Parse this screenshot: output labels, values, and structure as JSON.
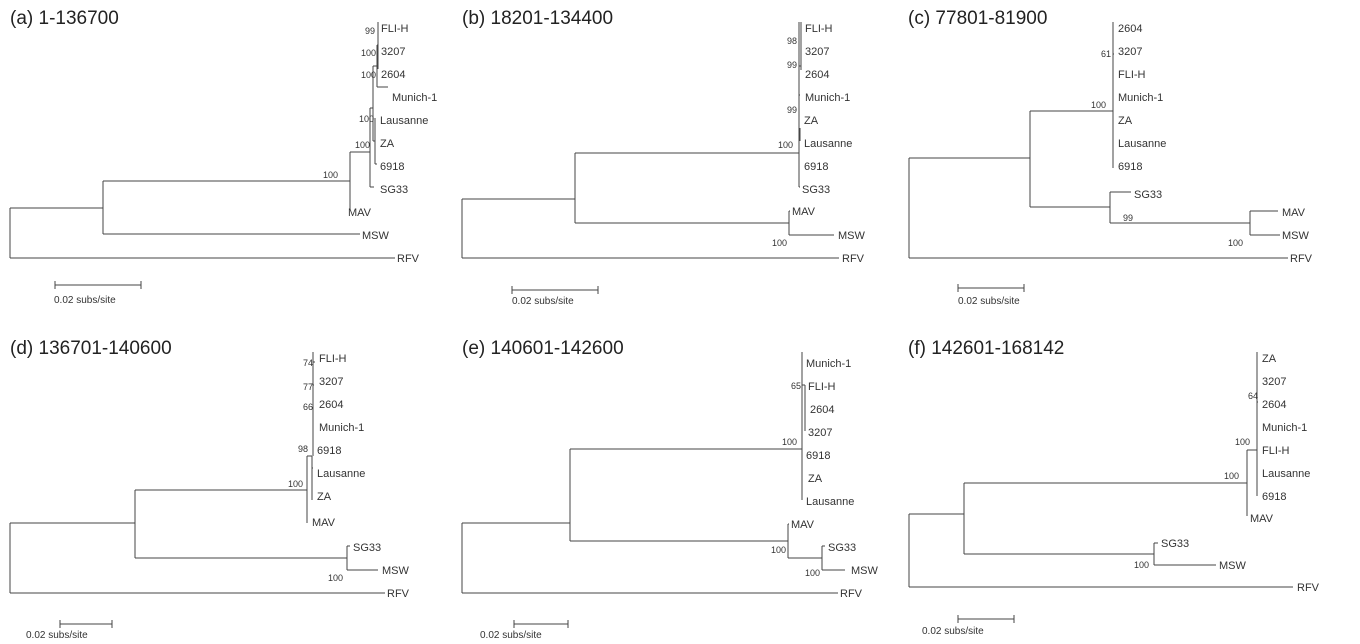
{
  "scale_label": "0.02 subs/site",
  "panels": [
    {
      "title": "(a) 1-136700",
      "tips": [
        "FLI-H",
        "3207",
        "2604",
        "Munich-1",
        "Lausanne",
        "ZA",
        "6918",
        "SG33",
        "MAV",
        "MSW",
        "RFV"
      ],
      "supports": [
        "99",
        "100",
        "100",
        "100",
        "100",
        "100"
      ]
    },
    {
      "title": "(b) 18201-134400",
      "tips": [
        "FLI-H",
        "3207",
        "2604",
        "Munich-1",
        "ZA",
        "Lausanne",
        "6918",
        "SG33",
        "MAV",
        "MSW",
        "RFV"
      ],
      "supports": [
        "98",
        "99",
        "99",
        "100",
        "100"
      ]
    },
    {
      "title": "(c) 77801-81900",
      "tips": [
        "2604",
        "3207",
        "FLI-H",
        "Munich-1",
        "ZA",
        "Lausanne",
        "6918",
        "SG33",
        "MAV",
        "MSW",
        "RFV"
      ],
      "supports": [
        "61",
        "100",
        "99",
        "100"
      ]
    },
    {
      "title": "(d) 136701-140600",
      "tips": [
        "FLI-H",
        "3207",
        "2604",
        "Munich-1",
        "6918",
        "Lausanne",
        "ZA",
        "MAV",
        "SG33",
        "MSW",
        "RFV"
      ],
      "supports": [
        "74",
        "77",
        "66",
        "98",
        "100",
        "100"
      ]
    },
    {
      "title": "(e) 140601-142600",
      "tips": [
        "Munich-1",
        "FLI-H",
        "2604",
        "3207",
        "6918",
        "ZA",
        "Lausanne",
        "MAV",
        "SG33",
        "MSW",
        "RFV"
      ],
      "supports": [
        "65",
        "100",
        "100",
        "100"
      ]
    },
    {
      "title": "(f) 142601-168142",
      "tips": [
        "ZA",
        "3207",
        "2604",
        "Munich-1",
        "FLI-H",
        "Lausanne",
        "6918",
        "MAV",
        "SG33",
        "MSW",
        "RFV"
      ],
      "supports": [
        "64",
        "100",
        "100",
        "100"
      ]
    }
  ]
}
